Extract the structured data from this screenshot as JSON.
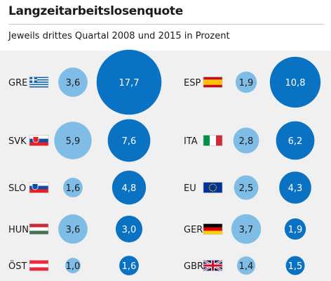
{
  "header": {
    "title": "Langzeitarbeitslosenquote",
    "subtitle": "Jeweils drittes Quartal 2008 und 2015 in Prozent"
  },
  "colors": {
    "year_2008": "#7fbde6",
    "year_2015": "#0a72c2",
    "background": "#f0f0f0"
  },
  "chart_data": {
    "type": "bubble",
    "title": "Langzeitarbeitslosenquote",
    "subtitle": "Jeweils drittes Quartal 2008 und 2015 in Prozent",
    "series": [
      {
        "name": "",
        "color": "#7fbde6"
      },
      {
        "name": "",
        "color": "#0a72c2"
      }
    ],
    "countries": [
      {
        "code": "GRE",
        "flag": "greece-flag",
        "v2008": 3.6,
        "v2015": 17.7,
        "label2008": "3,6",
        "label2015": "17,7"
      },
      {
        "code": "ESP",
        "flag": "spain-flag",
        "v2008": 1.9,
        "v2015": 10.8,
        "label2008": "1,9",
        "label2015": "10,8"
      },
      {
        "code": "SVK",
        "flag": "slovakia-flag",
        "v2008": 5.9,
        "v2015": 7.6,
        "label2008": "5,9",
        "label2015": "7,6"
      },
      {
        "code": "ITA",
        "flag": "italy-flag",
        "v2008": 2.8,
        "v2015": 6.2,
        "label2008": "2,8",
        "label2015": "6,2"
      },
      {
        "code": "SLO",
        "flag": "slovenia-flag",
        "v2008": 1.6,
        "v2015": 4.8,
        "label2008": "1,6",
        "label2015": "4,8"
      },
      {
        "code": "EU",
        "flag": "eu-flag",
        "v2008": 2.5,
        "v2015": 4.3,
        "label2008": "2,5",
        "label2015": "4,3"
      },
      {
        "code": "HUN",
        "flag": "hungary-flag",
        "v2008": 3.6,
        "v2015": 3.0,
        "label2008": "3,6",
        "label2015": "3,0"
      },
      {
        "code": "GER",
        "flag": "germany-flag",
        "v2008": 3.7,
        "v2015": 1.9,
        "label2008": "3,7",
        "label2015": "1,9"
      },
      {
        "code": "ÖST",
        "flag": "austria-flag",
        "v2008": 1.0,
        "v2015": 1.6,
        "label2008": "1,0",
        "label2015": "1,6"
      },
      {
        "code": "GBR",
        "flag": "uk-flag",
        "v2008": 1.4,
        "v2015": 1.5,
        "label2008": "1,4",
        "label2015": "1,5"
      }
    ]
  }
}
